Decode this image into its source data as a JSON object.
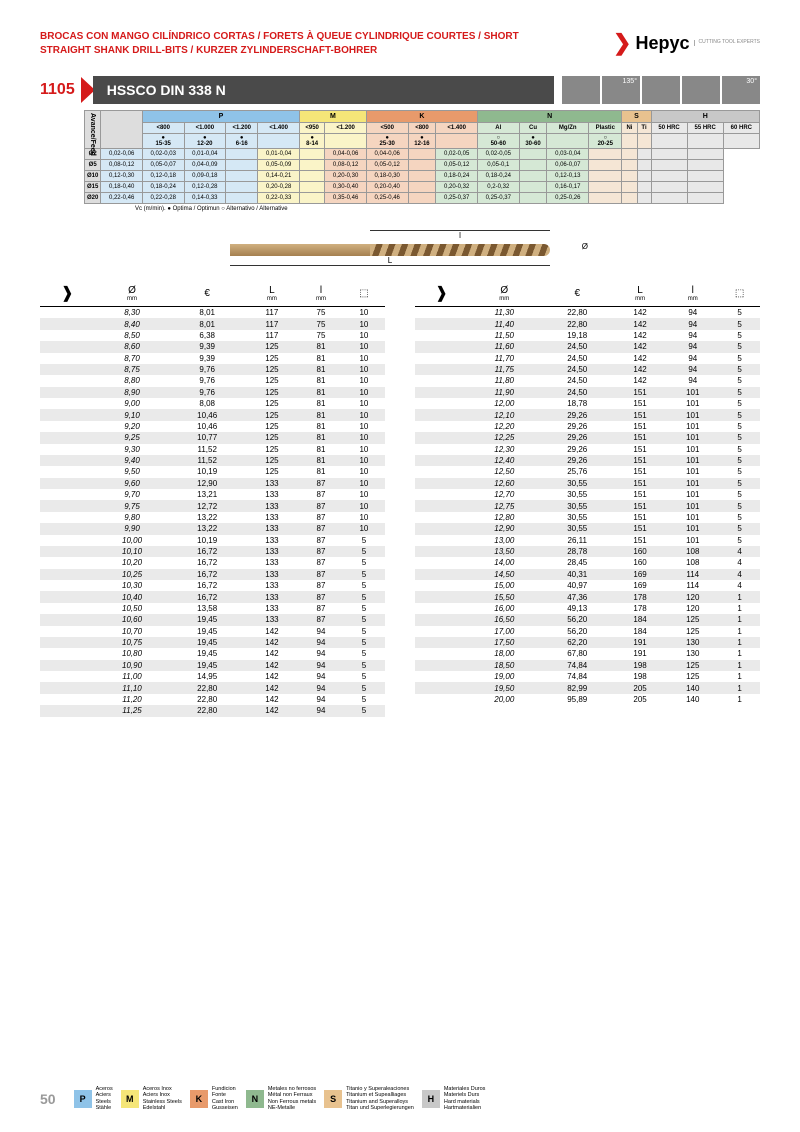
{
  "header": {
    "title": "BROCAS CON MANGO CILÍNDRICO CORTAS / FORETS À QUEUE CYLINDRIQUE COURTES / SHORT STRAIGHT SHANK DRILL-BITS / KURZER ZYLINDERSCHAFT-BOHRER",
    "brand": "Hepyc",
    "brand_sub": "CUTTING\nTOOL\nEXPERTS"
  },
  "product": {
    "code": "1105",
    "name": "HSSCO DIN 338 N",
    "angles": [
      "135°",
      "30°"
    ]
  },
  "mat": {
    "groups": [
      "P",
      "M",
      "K",
      "N",
      "S",
      "H"
    ],
    "p_sub": [
      "<800",
      "<1.000",
      "<1.200",
      "<1.400"
    ],
    "m_sub": [
      "<950",
      "<1.200"
    ],
    "k_sub": [
      "<500",
      "<800",
      "<1.400"
    ],
    "n_sub": [
      "Al",
      "Cu",
      "Mg/Zn",
      "Plastic"
    ],
    "s_sub": [
      "Ni",
      "Ti"
    ],
    "h_sub": [
      "50 HRC",
      "55 HRC",
      "60 HRC"
    ],
    "marks_p": [
      "●\n15-35",
      "●\n12-20",
      "●\n6-16",
      ""
    ],
    "marks_m": [
      "●\n8-14",
      ""
    ],
    "marks_k": [
      "●\n25-30",
      "●\n12-16",
      ""
    ],
    "marks_n": [
      "○\n50-60",
      "●\n30-60",
      "",
      "○\n20-25"
    ],
    "marks_s": [
      "",
      ""
    ],
    "marks_h": [
      "",
      "",
      ""
    ],
    "side": "Avance/Feed",
    "rows": [
      {
        "d": "Ø2",
        "p": [
          "0,02-0,06",
          "0,02-0,03",
          "0,01-0,04",
          ""
        ],
        "m": [
          "0,01-0,04",
          ""
        ],
        "k": [
          "0,04-0,06",
          "0,04-0,06",
          ""
        ],
        "n": [
          "0,02-0,05",
          "0,02-0,05",
          "",
          "0,03-0,04"
        ],
        "s": [
          "",
          ""
        ],
        "h": [
          "",
          "",
          ""
        ]
      },
      {
        "d": "Ø5",
        "p": [
          "0,08-0,12",
          "0,05-0,07",
          "0,04-0,09",
          ""
        ],
        "m": [
          "0,05-0,09",
          ""
        ],
        "k": [
          "0,08-0,12",
          "0,05-0,12",
          ""
        ],
        "n": [
          "0,05-0,12",
          "0,05-0,1",
          "",
          "0,06-0,07"
        ],
        "s": [
          "",
          ""
        ],
        "h": [
          "",
          "",
          ""
        ]
      },
      {
        "d": "Ø10",
        "p": [
          "0,12-0,30",
          "0,12-0,18",
          "0,09-0,18",
          ""
        ],
        "m": [
          "0,14-0,21",
          ""
        ],
        "k": [
          "0,20-0,30",
          "0,18-0,30",
          ""
        ],
        "n": [
          "0,18-0,24",
          "0,18-0,24",
          "",
          "0,12-0,13"
        ],
        "s": [
          "",
          ""
        ],
        "h": [
          "",
          "",
          ""
        ]
      },
      {
        "d": "Ø15",
        "p": [
          "0,18-0,40",
          "0,18-0,24",
          "0,12-0,28",
          ""
        ],
        "m": [
          "0,20-0,28",
          ""
        ],
        "k": [
          "0,30-0,40",
          "0,20-0,40",
          ""
        ],
        "n": [
          "0,20-0,32",
          "0,2-0,32",
          "",
          "0,16-0,17"
        ],
        "s": [
          "",
          ""
        ],
        "h": [
          "",
          "",
          ""
        ]
      },
      {
        "d": "Ø20",
        "p": [
          "0,22-0,46",
          "0,22-0,28",
          "0,14-0,33",
          ""
        ],
        "m": [
          "0,22-0,33",
          ""
        ],
        "k": [
          "0,35-0,46",
          "0,25-0,46",
          ""
        ],
        "n": [
          "0,25-0,37",
          "0,25-0,37",
          "",
          "0,25-0,26"
        ],
        "s": [
          "",
          ""
        ],
        "h": [
          "",
          "",
          ""
        ]
      }
    ],
    "vc_note": "Vc (m/min). ● Optima / Optimun  ○ Alternativo / Alternative"
  },
  "dims": {
    "l1": "l",
    "L": "L",
    "d": "Ø"
  },
  "cols": {
    "d": "Ø",
    "d_u": "mm",
    "eur": "€",
    "L": "L",
    "L_u": "mm",
    "l": "l",
    "l_u": "mm",
    "pack": "□"
  },
  "left": [
    [
      "8,30",
      "8,01",
      "117",
      "75",
      "10"
    ],
    [
      "8,40",
      "8,01",
      "117",
      "75",
      "10"
    ],
    [
      "8,50",
      "6,38",
      "117",
      "75",
      "10"
    ],
    [
      "8,60",
      "9,39",
      "125",
      "81",
      "10"
    ],
    [
      "8,70",
      "9,39",
      "125",
      "81",
      "10"
    ],
    [
      "8,75",
      "9,76",
      "125",
      "81",
      "10"
    ],
    [
      "8,80",
      "9,76",
      "125",
      "81",
      "10"
    ],
    [
      "8,90",
      "9,76",
      "125",
      "81",
      "10"
    ],
    [
      "9,00",
      "8,08",
      "125",
      "81",
      "10"
    ],
    [
      "9,10",
      "10,46",
      "125",
      "81",
      "10"
    ],
    [
      "9,20",
      "10,46",
      "125",
      "81",
      "10"
    ],
    [
      "9,25",
      "10,77",
      "125",
      "81",
      "10"
    ],
    [
      "9,30",
      "11,52",
      "125",
      "81",
      "10"
    ],
    [
      "9,40",
      "11,52",
      "125",
      "81",
      "10"
    ],
    [
      "9,50",
      "10,19",
      "125",
      "81",
      "10"
    ],
    [
      "9,60",
      "12,90",
      "133",
      "87",
      "10"
    ],
    [
      "9,70",
      "13,21",
      "133",
      "87",
      "10"
    ],
    [
      "9,75",
      "12,72",
      "133",
      "87",
      "10"
    ],
    [
      "9,80",
      "13,22",
      "133",
      "87",
      "10"
    ],
    [
      "9,90",
      "13,22",
      "133",
      "87",
      "10"
    ],
    [
      "10,00",
      "10,19",
      "133",
      "87",
      "5"
    ],
    [
      "10,10",
      "16,72",
      "133",
      "87",
      "5"
    ],
    [
      "10,20",
      "16,72",
      "133",
      "87",
      "5"
    ],
    [
      "10,25",
      "16,72",
      "133",
      "87",
      "5"
    ],
    [
      "10,30",
      "16,72",
      "133",
      "87",
      "5"
    ],
    [
      "10,40",
      "16,72",
      "133",
      "87",
      "5"
    ],
    [
      "10,50",
      "13,58",
      "133",
      "87",
      "5"
    ],
    [
      "10,60",
      "19,45",
      "133",
      "87",
      "5"
    ],
    [
      "10,70",
      "19,45",
      "142",
      "94",
      "5"
    ],
    [
      "10,75",
      "19,45",
      "142",
      "94",
      "5"
    ],
    [
      "10,80",
      "19,45",
      "142",
      "94",
      "5"
    ],
    [
      "10,90",
      "19,45",
      "142",
      "94",
      "5"
    ],
    [
      "11,00",
      "14,95",
      "142",
      "94",
      "5"
    ],
    [
      "11,10",
      "22,80",
      "142",
      "94",
      "5"
    ],
    [
      "11,20",
      "22,80",
      "142",
      "94",
      "5"
    ],
    [
      "11,25",
      "22,80",
      "142",
      "94",
      "5"
    ]
  ],
  "right": [
    [
      "11,30",
      "22,80",
      "142",
      "94",
      "5"
    ],
    [
      "11,40",
      "22,80",
      "142",
      "94",
      "5"
    ],
    [
      "11,50",
      "19,18",
      "142",
      "94",
      "5"
    ],
    [
      "11,60",
      "24,50",
      "142",
      "94",
      "5"
    ],
    [
      "11,70",
      "24,50",
      "142",
      "94",
      "5"
    ],
    [
      "11,75",
      "24,50",
      "142",
      "94",
      "5"
    ],
    [
      "11,80",
      "24,50",
      "142",
      "94",
      "5"
    ],
    [
      "11,90",
      "24,50",
      "151",
      "101",
      "5"
    ],
    [
      "12,00",
      "18,78",
      "151",
      "101",
      "5"
    ],
    [
      "12,10",
      "29,26",
      "151",
      "101",
      "5"
    ],
    [
      "12,20",
      "29,26",
      "151",
      "101",
      "5"
    ],
    [
      "12,25",
      "29,26",
      "151",
      "101",
      "5"
    ],
    [
      "12,30",
      "29,26",
      "151",
      "101",
      "5"
    ],
    [
      "12,40",
      "29,26",
      "151",
      "101",
      "5"
    ],
    [
      "12,50",
      "25,76",
      "151",
      "101",
      "5"
    ],
    [
      "12,60",
      "30,55",
      "151",
      "101",
      "5"
    ],
    [
      "12,70",
      "30,55",
      "151",
      "101",
      "5"
    ],
    [
      "12,75",
      "30,55",
      "151",
      "101",
      "5"
    ],
    [
      "12,80",
      "30,55",
      "151",
      "101",
      "5"
    ],
    [
      "12,90",
      "30,55",
      "151",
      "101",
      "5"
    ],
    [
      "13,00",
      "26,11",
      "151",
      "101",
      "5"
    ],
    [
      "13,50",
      "28,78",
      "160",
      "108",
      "4"
    ],
    [
      "14,00",
      "28,45",
      "160",
      "108",
      "4"
    ],
    [
      "14,50",
      "40,31",
      "169",
      "114",
      "4"
    ],
    [
      "15,00",
      "40,97",
      "169",
      "114",
      "4"
    ],
    [
      "15,50",
      "47,36",
      "178",
      "120",
      "1"
    ],
    [
      "16,00",
      "49,13",
      "178",
      "120",
      "1"
    ],
    [
      "16,50",
      "56,20",
      "184",
      "125",
      "1"
    ],
    [
      "17,00",
      "56,20",
      "184",
      "125",
      "1"
    ],
    [
      "17,50",
      "62,20",
      "191",
      "130",
      "1"
    ],
    [
      "18,00",
      "67,80",
      "191",
      "130",
      "1"
    ],
    [
      "18,50",
      "74,84",
      "198",
      "125",
      "1"
    ],
    [
      "19,00",
      "74,84",
      "198",
      "125",
      "1"
    ],
    [
      "19,50",
      "82,99",
      "205",
      "140",
      "1"
    ],
    [
      "20,00",
      "95,89",
      "205",
      "140",
      "1"
    ]
  ],
  "footer": {
    "page": "50",
    "legend": [
      {
        "k": "P",
        "c": "#8fc3e8",
        "t": "Aceros\nAciers\nSteels\nStähle"
      },
      {
        "k": "M",
        "c": "#f5e678",
        "t": "Aceros Inox\nAciers Inox\nStainless Steels\nEdelstahl"
      },
      {
        "k": "K",
        "c": "#e89a6b",
        "t": "Fundicion\nFonte\nCast Iron\nGusseisen"
      },
      {
        "k": "N",
        "c": "#8fb98f",
        "t": "Metales no ferrosos\nMétal non Ferraux\nNon Ferrous metals\nNE-Metalle"
      },
      {
        "k": "S",
        "c": "#e8c28f",
        "t": "Titanio y Superaleaciones\nTitanium et Supealliages\nTitanium and Superalloys\nTitan und Superlegierungen"
      },
      {
        "k": "H",
        "c": "#c8c8c8",
        "t": "Materiales Duros\nMateriels Durs\nHard materials\nHartmaterialien"
      }
    ]
  }
}
